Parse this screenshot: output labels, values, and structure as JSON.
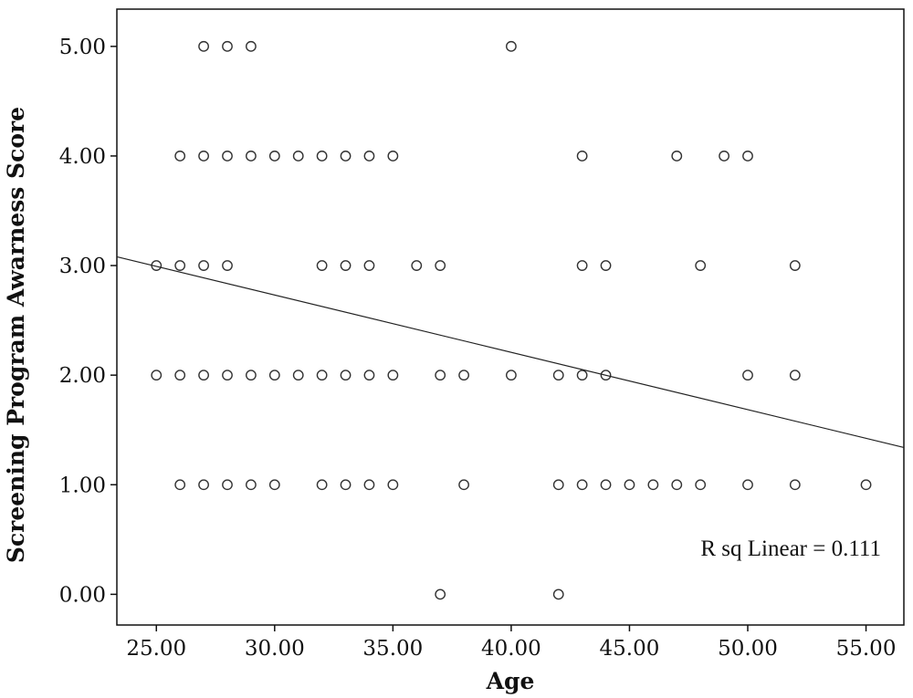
{
  "chart_data": {
    "type": "scatter",
    "title": "",
    "xlabel": "Age",
    "ylabel": "Screening Program Awarness Score",
    "xlim": [
      23.33,
      56.6
    ],
    "ylim": [
      -0.28,
      5.34
    ],
    "xticks": [
      25,
      30,
      35,
      40,
      45,
      50,
      55
    ],
    "yticks": [
      0,
      1,
      2,
      3,
      4,
      5
    ],
    "xtick_labels": [
      "25.00",
      "30.00",
      "35.00",
      "40.00",
      "45.00",
      "50.00",
      "55.00"
    ],
    "ytick_labels": [
      "0.00",
      "1.00",
      "2.00",
      "3.00",
      "4.00",
      "5.00"
    ],
    "grid": false,
    "annotation": "R sq Linear = 0.111",
    "fit_line": {
      "type": "linear",
      "x": [
        23.33,
        56.6
      ],
      "y": [
        3.08,
        1.34
      ]
    },
    "points": [
      {
        "x": 27,
        "y": 5,
        "n": 2
      },
      {
        "x": 28,
        "y": 5,
        "n": 2
      },
      {
        "x": 29,
        "y": 5,
        "n": 2
      },
      {
        "x": 40,
        "y": 5,
        "n": 1
      },
      {
        "x": 26,
        "y": 4,
        "n": 3
      },
      {
        "x": 27,
        "y": 4,
        "n": 3
      },
      {
        "x": 28,
        "y": 4,
        "n": 3
      },
      {
        "x": 29,
        "y": 4,
        "n": 2
      },
      {
        "x": 30,
        "y": 4,
        "n": 2
      },
      {
        "x": 31,
        "y": 4,
        "n": 1
      },
      {
        "x": 32,
        "y": 4,
        "n": 2
      },
      {
        "x": 33,
        "y": 4,
        "n": 1
      },
      {
        "x": 34,
        "y": 4,
        "n": 1
      },
      {
        "x": 35,
        "y": 4,
        "n": 2
      },
      {
        "x": 43,
        "y": 4,
        "n": 2
      },
      {
        "x": 47,
        "y": 4,
        "n": 1
      },
      {
        "x": 49,
        "y": 4,
        "n": 2
      },
      {
        "x": 50,
        "y": 4,
        "n": 1
      },
      {
        "x": 25,
        "y": 3,
        "n": 1
      },
      {
        "x": 26,
        "y": 3,
        "n": 2
      },
      {
        "x": 27,
        "y": 3,
        "n": 2
      },
      {
        "x": 28,
        "y": 3,
        "n": 2
      },
      {
        "x": 32,
        "y": 3,
        "n": 1
      },
      {
        "x": 33,
        "y": 3,
        "n": 2
      },
      {
        "x": 34,
        "y": 3,
        "n": 1
      },
      {
        "x": 36,
        "y": 3,
        "n": 2
      },
      {
        "x": 37,
        "y": 3,
        "n": 2
      },
      {
        "x": 43,
        "y": 3,
        "n": 1
      },
      {
        "x": 44,
        "y": 3,
        "n": 1
      },
      {
        "x": 48,
        "y": 3,
        "n": 3
      },
      {
        "x": 52,
        "y": 3,
        "n": 1
      },
      {
        "x": 25,
        "y": 2,
        "n": 3
      },
      {
        "x": 26,
        "y": 2,
        "n": 1
      },
      {
        "x": 27,
        "y": 2,
        "n": 1
      },
      {
        "x": 28,
        "y": 2,
        "n": 2
      },
      {
        "x": 29,
        "y": 2,
        "n": 1
      },
      {
        "x": 30,
        "y": 2,
        "n": 1
      },
      {
        "x": 31,
        "y": 2,
        "n": 3
      },
      {
        "x": 32,
        "y": 2,
        "n": 3
      },
      {
        "x": 33,
        "y": 2,
        "n": 2
      },
      {
        "x": 34,
        "y": 2,
        "n": 2
      },
      {
        "x": 35,
        "y": 2,
        "n": 1
      },
      {
        "x": 37,
        "y": 2,
        "n": 3
      },
      {
        "x": 38,
        "y": 2,
        "n": 2
      },
      {
        "x": 40,
        "y": 2,
        "n": 3
      },
      {
        "x": 42,
        "y": 2,
        "n": 2
      },
      {
        "x": 43,
        "y": 2,
        "n": 1
      },
      {
        "x": 44,
        "y": 2,
        "n": 3
      },
      {
        "x": 50,
        "y": 2,
        "n": 1
      },
      {
        "x": 52,
        "y": 2,
        "n": 1
      },
      {
        "x": 26,
        "y": 1,
        "n": 3
      },
      {
        "x": 27,
        "y": 1,
        "n": 1
      },
      {
        "x": 28,
        "y": 1,
        "n": 1
      },
      {
        "x": 29,
        "y": 1,
        "n": 1
      },
      {
        "x": 30,
        "y": 1,
        "n": 1
      },
      {
        "x": 32,
        "y": 1,
        "n": 1
      },
      {
        "x": 33,
        "y": 1,
        "n": 1
      },
      {
        "x": 34,
        "y": 1,
        "n": 3
      },
      {
        "x": 35,
        "y": 1,
        "n": 1
      },
      {
        "x": 38,
        "y": 1,
        "n": 3
      },
      {
        "x": 42,
        "y": 1,
        "n": 1
      },
      {
        "x": 43,
        "y": 1,
        "n": 3
      },
      {
        "x": 44,
        "y": 1,
        "n": 1
      },
      {
        "x": 45,
        "y": 1,
        "n": 2
      },
      {
        "x": 46,
        "y": 1,
        "n": 1
      },
      {
        "x": 47,
        "y": 1,
        "n": 1
      },
      {
        "x": 48,
        "y": 1,
        "n": 1
      },
      {
        "x": 50,
        "y": 1,
        "n": 3
      },
      {
        "x": 52,
        "y": 1,
        "n": 3
      },
      {
        "x": 55,
        "y": 1,
        "n": 1
      },
      {
        "x": 37,
        "y": 0,
        "n": 1
      },
      {
        "x": 42,
        "y": 0,
        "n": 1
      }
    ]
  }
}
